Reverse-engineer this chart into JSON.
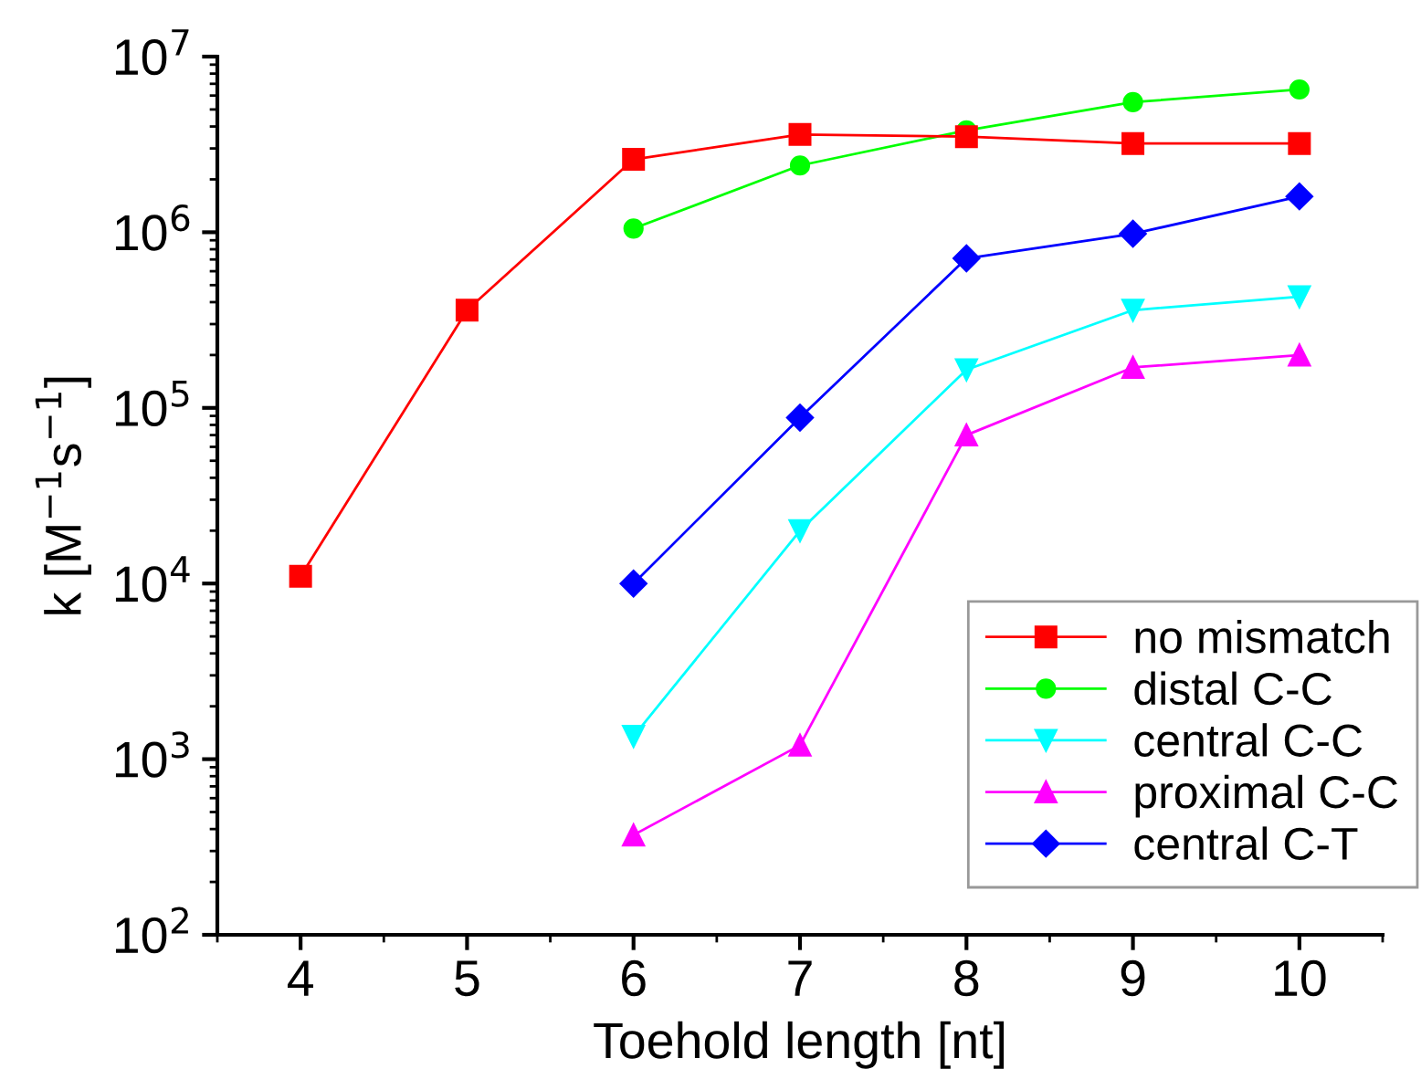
{
  "chart_data": {
    "type": "line",
    "xlabel": "Toehold length [nt]",
    "ylabel": "k [M$^{−1}$s$^{−1}$]",
    "log": "y",
    "xlim": [
      3.5,
      10.5
    ],
    "xticks": [
      4,
      5,
      6,
      7,
      8,
      9,
      10
    ],
    "ylim": [
      100,
      10000000
    ],
    "yticks": [
      {
        "value": 100,
        "label": "10$^{2}$"
      },
      {
        "value": 1000,
        "label": "10$^{3}$"
      },
      {
        "value": 10000,
        "label": "10$^{4}$"
      },
      {
        "value": 100000,
        "label": "10$^{5}$"
      },
      {
        "value": 1000000,
        "label": "10$^{6}$"
      },
      {
        "value": 10000000,
        "label": "10$^{7}$"
      }
    ],
    "grid": false,
    "legend": "bottom right",
    "line_style": "solid",
    "series": [
      {
        "name": "no mismatch",
        "color": "#ff0000",
        "marker": "square",
        "x": [
          4,
          5,
          6,
          7,
          8,
          9,
          10
        ],
        "values": [
          11000,
          360000,
          2600000,
          3600000,
          3500000,
          3200000,
          3200000
        ]
      },
      {
        "name": "distal C-C",
        "color": "#00ff00",
        "marker": "circle",
        "x": [
          6,
          7,
          8,
          9,
          10
        ],
        "values": [
          1050000,
          2400000,
          3800000,
          5500000,
          6500000
        ]
      },
      {
        "name": "central C-C",
        "color": "#00ffff",
        "marker": "triangle_down",
        "x": [
          6,
          7,
          8,
          9,
          10
        ],
        "values": [
          1350,
          20000,
          165000,
          360000,
          430000
        ]
      },
      {
        "name": "proximal C-C",
        "color": "#ff00ff",
        "marker": "triangle",
        "x": [
          6,
          7,
          8,
          9,
          10
        ],
        "values": [
          370,
          1200,
          70000,
          170000,
          200000
        ]
      },
      {
        "name": "central C-T",
        "color": "#0000ff",
        "marker": "diamond",
        "x": [
          6,
          7,
          8,
          9,
          10
        ],
        "values": [
          10000,
          88000,
          710000,
          980000,
          1600000
        ]
      }
    ]
  }
}
